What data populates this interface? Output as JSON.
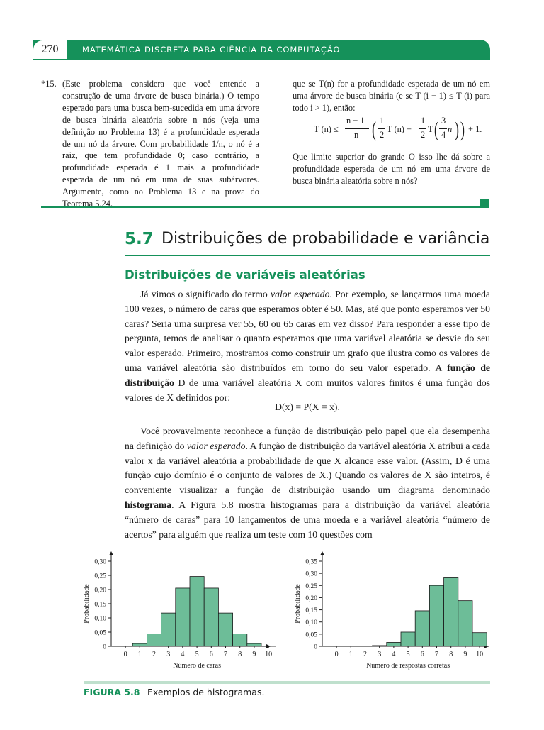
{
  "header": {
    "page_number": "270",
    "book_title": "MATEMÁTICA DISCRETA PARA CIÊNCIA DA COMPUTAÇÃO"
  },
  "problem": {
    "number": "*15.",
    "left_column": "(Este problema considera que você entende a construção de uma árvore de busca binária.) O tempo esperado para uma busca bem-sucedida em uma árvore de busca binária aleatória sobre n nós (veja uma definição no Problema 13) é a profundidade esperada de um nó da árvore. Com probabilidade 1/n, o nó é a raiz, que tem profundidade 0; caso contrário, a profundidade esperada é 1 mais a profundidade esperada de um nó em uma de suas subárvores. Argumente, como no Problema 13 e na prova do Teorema 5.24,",
    "right_column_intro": "que se T(n) for a profundidade esperada de um nó em uma árvore de busca binária (e se T (i − 1) ≤ T (i) para todo i > 1), então:",
    "formula": {
      "lhs": "T (n) ≤",
      "frac1_num": "n − 1",
      "frac1_den": "n",
      "half_num": "1",
      "half_den": "2",
      "term1": "T (n) +",
      "half2_num": "1",
      "half2_den": "2",
      "term2": "T",
      "frac3_num": "3",
      "frac3_den": "4",
      "var_n": "n",
      "tail": "+ 1."
    },
    "right_column_question": "Que limite superior do grande O isso lhe dá sobre a profundidade esperada de um nó em uma árvore de busca binária aleatória sobre n nós?"
  },
  "section": {
    "number": "5.7",
    "title": "Distribuições de probabilidade e variância",
    "subsection": "Distribuições de variáveis aleatórias"
  },
  "paragraph1": {
    "p1": "Já vimos o significado do termo ",
    "p1_em": "valor esperado",
    "p2": ". Por exemplo, se lançarmos uma moeda 100 vezes, o número de caras que esperamos obter é 50. Mas, até que ponto esperamos ver 50 caras? Seria uma surpresa ver 55, 60 ou 65 caras em vez disso? Para responder a esse tipo de pergunta, temos de analisar o quanto esperamos que uma variável aleatória se desvie do seu valor esperado. Primeiro, mostramos como construir um grafo que ilustra como os valores de uma variável aleatória são distribuídos em torno do seu valor esperado. A ",
    "p2_bold": "função de distribuição",
    "p3": " D de uma variável aleatória X com muitos valores finitos é uma função dos valores de X definidos por:"
  },
  "equation": "D(x) = P(X = x).",
  "paragraph2": {
    "p1": "Você provavelmente reconhece a função de distribuição pelo papel que ela desempenha na definição do ",
    "p1_em": "valor esperado",
    "p2": ". A função de distribuição da variável aleatória X atribui a cada valor x da variável aleatória a probabilidade de que X alcance esse valor. (Assim, D é uma função cujo domínio é o conjunto de valores de X.) Quando os valores de X são inteiros, é conveniente visualizar a função de distribuição usando um diagrama denominado ",
    "p2_bold": "histograma",
    "p3": ". A Figura 5.8 mostra histogramas para a distribuição da variável aleatória “número de caras” para 10 lançamentos de uma moeda e a variável aleatória “número de acertos” para alguém que realiza um teste com 10 questões com"
  },
  "chart_data": [
    {
      "type": "bar",
      "xlabel": "Número de caras",
      "ylabel": "Probabilidade",
      "categories": [
        "0",
        "1",
        "2",
        "3",
        "4",
        "5",
        "6",
        "7",
        "8",
        "9",
        "10"
      ],
      "values": [
        0.001,
        0.0098,
        0.0439,
        0.1172,
        0.2051,
        0.2461,
        0.2051,
        0.1172,
        0.0439,
        0.0098,
        0.001
      ],
      "yticks": [
        "0",
        "0,05",
        "0,10",
        "0,15",
        "0,20",
        "0,25",
        "0,30"
      ],
      "ylim": [
        0,
        0.3
      ],
      "color": "#6dbd98"
    },
    {
      "type": "bar",
      "xlabel": "Número de respostas corretas",
      "ylabel": "Probabilidade",
      "categories": [
        "0",
        "1",
        "2",
        "3",
        "4",
        "5",
        "6",
        "7",
        "8",
        "9",
        "10"
      ],
      "values": [
        0.0,
        0.0,
        0.0004,
        0.0031,
        0.0162,
        0.0584,
        0.146,
        0.2503,
        0.2816,
        0.1877,
        0.0563
      ],
      "yticks": [
        "0",
        "0,05",
        "0,10",
        "0,15",
        "0,20",
        "0,25",
        "0,30",
        "0,35"
      ],
      "ylim": [
        0,
        0.35
      ],
      "color": "#6dbd98"
    }
  ],
  "caption": {
    "label": "FIGURA 5.8",
    "text": "Exemplos de histogramas."
  }
}
